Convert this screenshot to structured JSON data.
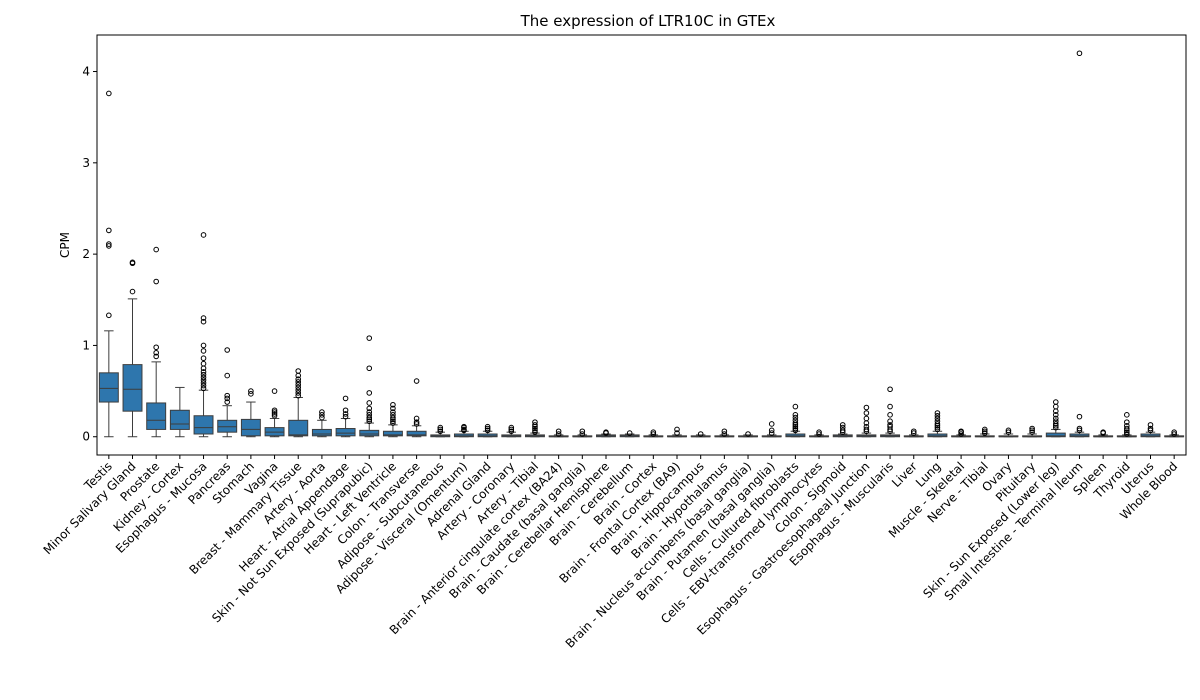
{
  "chart_data": {
    "type": "box",
    "title": "The expression of LTR10C in GTEx",
    "xlabel": "",
    "ylabel": "CPM",
    "ylim": [
      -0.2,
      4.4
    ],
    "yticks": [
      0,
      1,
      2,
      3,
      4
    ],
    "grid": false,
    "legend": "none",
    "box_color": "#2e76ad",
    "categories": [
      "Testis",
      "Minor Salivary Gland",
      "Prostate",
      "Kidney - Cortex",
      "Esophagus - Mucosa",
      "Pancreas",
      "Stomach",
      "Vagina",
      "Breast - Mammary Tissue",
      "Artery - Aorta",
      "Heart - Atrial Appendage",
      "Skin - Not Sun Exposed (Suprapubic)",
      "Heart - Left Ventricle",
      "Colon - Transverse",
      "Adipose - Subcutaneous",
      "Adipose - Visceral (Omentum)",
      "Adrenal Gland",
      "Artery - Coronary",
      "Artery - Tibial",
      "Brain - Anterior cingulate cortex (BA24)",
      "Brain - Caudate (basal ganglia)",
      "Brain - Cerebellar Hemisphere",
      "Brain - Cerebellum",
      "Brain - Cortex",
      "Brain - Frontal Cortex (BA9)",
      "Brain - Hippocampus",
      "Brain - Hypothalamus",
      "Brain - Nucleus accumbens (basal ganglia)",
      "Brain - Putamen (basal ganglia)",
      "Cells - Cultured fibroblasts",
      "Cells - EBV-transformed lymphocytes",
      "Colon - Sigmoid",
      "Esophagus - Gastroesophageal Junction",
      "Esophagus - Muscularis",
      "Liver",
      "Lung",
      "Muscle - Skeletal",
      "Nerve - Tibial",
      "Ovary",
      "Pituitary",
      "Skin - Sun Exposed (Lower leg)",
      "Small Intestine - Terminal Ileum",
      "Spleen",
      "Thyroid",
      "Uterus",
      "Whole Blood"
    ],
    "boxes": [
      {
        "whislo": 0.0,
        "q1": 0.38,
        "med": 0.53,
        "q3": 0.7,
        "whishi": 1.16,
        "fliers": [
          1.33,
          2.09,
          2.11,
          2.26,
          3.76
        ]
      },
      {
        "whislo": 0.0,
        "q1": 0.28,
        "med": 0.52,
        "q3": 0.79,
        "whishi": 1.51,
        "fliers": [
          1.59,
          1.9,
          1.91
        ]
      },
      {
        "whislo": 0.0,
        "q1": 0.08,
        "med": 0.18,
        "q3": 0.37,
        "whishi": 0.82,
        "fliers": [
          0.88,
          0.92,
          0.98,
          1.7,
          2.05
        ]
      },
      {
        "whislo": 0.0,
        "q1": 0.08,
        "med": 0.14,
        "q3": 0.29,
        "whishi": 0.54,
        "fliers": []
      },
      {
        "whislo": 0.0,
        "q1": 0.03,
        "med": 0.1,
        "q3": 0.23,
        "whishi": 0.51,
        "fliers": [
          0.53,
          0.56,
          0.59,
          0.62,
          0.65,
          0.68,
          0.71,
          0.75,
          0.8,
          0.86,
          0.94,
          1.0,
          1.26,
          1.3,
          2.21
        ]
      },
      {
        "whislo": 0.0,
        "q1": 0.05,
        "med": 0.11,
        "q3": 0.18,
        "whishi": 0.34,
        "fliers": [
          0.38,
          0.42,
          0.45,
          0.67,
          0.95
        ]
      },
      {
        "whislo": 0.0,
        "q1": 0.01,
        "med": 0.08,
        "q3": 0.19,
        "whishi": 0.38,
        "fliers": [
          0.47,
          0.5
        ]
      },
      {
        "whislo": 0.0,
        "q1": 0.01,
        "med": 0.05,
        "q3": 0.1,
        "whishi": 0.2,
        "fliers": [
          0.23,
          0.25,
          0.27,
          0.29,
          0.5
        ]
      },
      {
        "whislo": 0.0,
        "q1": 0.01,
        "med": 0.02,
        "q3": 0.18,
        "whishi": 0.43,
        "fliers": [
          0.45,
          0.48,
          0.51,
          0.54,
          0.57,
          0.6,
          0.63,
          0.67,
          0.72
        ]
      },
      {
        "whislo": 0.0,
        "q1": 0.01,
        "med": 0.03,
        "q3": 0.08,
        "whishi": 0.18,
        "fliers": [
          0.21,
          0.24,
          0.27
        ]
      },
      {
        "whislo": 0.0,
        "q1": 0.01,
        "med": 0.04,
        "q3": 0.09,
        "whishi": 0.2,
        "fliers": [
          0.22,
          0.25,
          0.29,
          0.42
        ]
      },
      {
        "whislo": 0.0,
        "q1": 0.01,
        "med": 0.03,
        "q3": 0.07,
        "whishi": 0.15,
        "fliers": [
          0.17,
          0.19,
          0.21,
          0.24,
          0.27,
          0.31,
          0.37,
          0.48,
          0.75,
          1.08
        ]
      },
      {
        "whislo": 0.0,
        "q1": 0.01,
        "med": 0.02,
        "q3": 0.06,
        "whishi": 0.13,
        "fliers": [
          0.15,
          0.17,
          0.19,
          0.21,
          0.24,
          0.27,
          0.31,
          0.35
        ]
      },
      {
        "whislo": 0.0,
        "q1": 0.01,
        "med": 0.02,
        "q3": 0.06,
        "whishi": 0.12,
        "fliers": [
          0.14,
          0.16,
          0.2,
          0.61
        ]
      },
      {
        "whislo": 0.0,
        "q1": 0.0,
        "med": 0.01,
        "q3": 0.02,
        "whishi": 0.05,
        "fliers": [
          0.06,
          0.08,
          0.1
        ]
      },
      {
        "whislo": 0.0,
        "q1": 0.0,
        "med": 0.01,
        "q3": 0.03,
        "whishi": 0.06,
        "fliers": [
          0.07,
          0.08,
          0.1,
          0.11
        ]
      },
      {
        "whislo": 0.0,
        "q1": 0.0,
        "med": 0.01,
        "q3": 0.03,
        "whishi": 0.06,
        "fliers": [
          0.07,
          0.09,
          0.11
        ]
      },
      {
        "whislo": 0.0,
        "q1": 0.0,
        "med": 0.01,
        "q3": 0.02,
        "whishi": 0.05,
        "fliers": [
          0.06,
          0.08,
          0.1
        ]
      },
      {
        "whislo": 0.0,
        "q1": 0.0,
        "med": 0.01,
        "q3": 0.02,
        "whishi": 0.04,
        "fliers": [
          0.05,
          0.07,
          0.09,
          0.11,
          0.13,
          0.16
        ]
      },
      {
        "whislo": 0.0,
        "q1": 0.0,
        "med": 0.0,
        "q3": 0.01,
        "whishi": 0.02,
        "fliers": [
          0.03,
          0.06
        ]
      },
      {
        "whislo": 0.0,
        "q1": 0.0,
        "med": 0.0,
        "q3": 0.01,
        "whishi": 0.02,
        "fliers": [
          0.03,
          0.06
        ]
      },
      {
        "whislo": 0.0,
        "q1": 0.0,
        "med": 0.01,
        "q3": 0.02,
        "whishi": 0.03,
        "fliers": [
          0.04,
          0.05
        ]
      },
      {
        "whislo": 0.0,
        "q1": 0.0,
        "med": 0.01,
        "q3": 0.02,
        "whishi": 0.03,
        "fliers": [
          0.04
        ]
      },
      {
        "whislo": 0.0,
        "q1": 0.0,
        "med": 0.0,
        "q3": 0.01,
        "whishi": 0.02,
        "fliers": [
          0.03,
          0.05
        ]
      },
      {
        "whislo": 0.0,
        "q1": 0.0,
        "med": 0.0,
        "q3": 0.01,
        "whishi": 0.02,
        "fliers": [
          0.04,
          0.08
        ]
      },
      {
        "whislo": 0.0,
        "q1": 0.0,
        "med": 0.0,
        "q3": 0.01,
        "whishi": 0.02,
        "fliers": [
          0.03
        ]
      },
      {
        "whislo": 0.0,
        "q1": 0.0,
        "med": 0.0,
        "q3": 0.01,
        "whishi": 0.02,
        "fliers": [
          0.03,
          0.06
        ]
      },
      {
        "whislo": 0.0,
        "q1": 0.0,
        "med": 0.0,
        "q3": 0.01,
        "whishi": 0.02,
        "fliers": [
          0.03
        ]
      },
      {
        "whislo": 0.0,
        "q1": 0.0,
        "med": 0.0,
        "q3": 0.01,
        "whishi": 0.02,
        "fliers": [
          0.04,
          0.07,
          0.14
        ]
      },
      {
        "whislo": 0.0,
        "q1": 0.0,
        "med": 0.01,
        "q3": 0.03,
        "whishi": 0.06,
        "fliers": [
          0.07,
          0.09,
          0.11,
          0.13,
          0.15,
          0.18,
          0.21,
          0.24,
          0.33
        ]
      },
      {
        "whislo": 0.0,
        "q1": 0.0,
        "med": 0.0,
        "q3": 0.01,
        "whishi": 0.02,
        "fliers": [
          0.03,
          0.05
        ]
      },
      {
        "whislo": 0.0,
        "q1": 0.0,
        "med": 0.01,
        "q3": 0.02,
        "whishi": 0.03,
        "fliers": [
          0.05,
          0.07,
          0.1,
          0.13
        ]
      },
      {
        "whislo": 0.0,
        "q1": 0.0,
        "med": 0.01,
        "q3": 0.02,
        "whishi": 0.04,
        "fliers": [
          0.06,
          0.08,
          0.11,
          0.15,
          0.2,
          0.26,
          0.32
        ]
      },
      {
        "whislo": 0.0,
        "q1": 0.0,
        "med": 0.01,
        "q3": 0.02,
        "whishi": 0.04,
        "fliers": [
          0.06,
          0.08,
          0.11,
          0.13,
          0.17,
          0.24,
          0.33,
          0.52
        ]
      },
      {
        "whislo": 0.0,
        "q1": 0.0,
        "med": 0.0,
        "q3": 0.01,
        "whishi": 0.02,
        "fliers": [
          0.04,
          0.06
        ]
      },
      {
        "whislo": 0.0,
        "q1": 0.0,
        "med": 0.01,
        "q3": 0.03,
        "whishi": 0.06,
        "fliers": [
          0.08,
          0.1,
          0.12,
          0.14,
          0.17,
          0.2,
          0.23,
          0.26
        ]
      },
      {
        "whislo": 0.0,
        "q1": 0.0,
        "med": 0.0,
        "q3": 0.01,
        "whishi": 0.02,
        "fliers": [
          0.03,
          0.05,
          0.06
        ]
      },
      {
        "whislo": 0.0,
        "q1": 0.0,
        "med": 0.0,
        "q3": 0.01,
        "whishi": 0.03,
        "fliers": [
          0.04,
          0.06,
          0.08
        ]
      },
      {
        "whislo": 0.0,
        "q1": 0.0,
        "med": 0.0,
        "q3": 0.01,
        "whishi": 0.03,
        "fliers": [
          0.05,
          0.07
        ]
      },
      {
        "whislo": 0.0,
        "q1": 0.0,
        "med": 0.0,
        "q3": 0.01,
        "whishi": 0.03,
        "fliers": [
          0.05,
          0.07,
          0.09
        ]
      },
      {
        "whislo": 0.0,
        "q1": 0.0,
        "med": 0.01,
        "q3": 0.04,
        "whishi": 0.08,
        "fliers": [
          0.1,
          0.12,
          0.14,
          0.17,
          0.2,
          0.24,
          0.28,
          0.33,
          0.38
        ]
      },
      {
        "whislo": 0.0,
        "q1": 0.0,
        "med": 0.01,
        "q3": 0.03,
        "whishi": 0.05,
        "fliers": [
          0.07,
          0.09,
          0.22,
          4.2
        ]
      },
      {
        "whislo": 0.0,
        "q1": 0.0,
        "med": 0.0,
        "q3": 0.01,
        "whishi": 0.02,
        "fliers": [
          0.04,
          0.05
        ]
      },
      {
        "whislo": 0.0,
        "q1": 0.0,
        "med": 0.0,
        "q3": 0.01,
        "whishi": 0.02,
        "fliers": [
          0.03,
          0.05,
          0.07,
          0.09,
          0.12,
          0.16,
          0.24
        ]
      },
      {
        "whislo": 0.0,
        "q1": 0.0,
        "med": 0.01,
        "q3": 0.03,
        "whishi": 0.05,
        "fliers": [
          0.07,
          0.09,
          0.13
        ]
      },
      {
        "whislo": 0.0,
        "q1": 0.0,
        "med": 0.0,
        "q3": 0.01,
        "whishi": 0.02,
        "fliers": [
          0.03,
          0.05
        ]
      }
    ]
  }
}
